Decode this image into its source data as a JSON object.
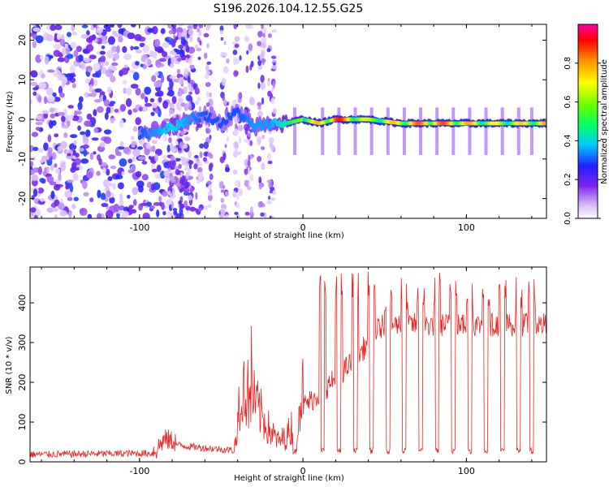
{
  "title": "S196.2026.104.12.55.G25",
  "chart_data": [
    {
      "type": "heatmap",
      "name": "spectrogram",
      "xlabel": "Height of straight line (km)",
      "ylabel": "Frequency (Hz)",
      "xlim": [
        -167,
        149
      ],
      "ylim": [
        -25,
        24
      ],
      "xticks": [
        -100,
        0,
        100
      ],
      "yticks": [
        20,
        10,
        0,
        -10,
        -20
      ],
      "colorbar": {
        "label": "Normalized spectral amplitude",
        "range": [
          0,
          1
        ],
        "ticks": [
          "0.0",
          "0.2",
          "0.4",
          "0.6",
          "0.8"
        ],
        "tick_values": [
          0.0,
          0.2,
          0.4,
          0.6,
          0.8
        ],
        "colormap": "rainbow (white-violet-blue-cyan-green-yellow-orange-red-magenta)"
      },
      "ridge": {
        "description": "signal ridge near 0 Hz",
        "x": [
          -100,
          -90,
          -80,
          -70,
          -60,
          -50,
          -40,
          -30,
          -20,
          -10,
          0,
          10,
          20,
          40,
          60,
          80,
          100,
          120,
          149
        ],
        "freq_hz": [
          -4,
          -3,
          -2,
          0,
          1,
          -1,
          2,
          -2,
          -1,
          -1,
          0,
          -1,
          0,
          0,
          -1,
          -1,
          -1,
          -1,
          -1
        ],
        "amplitude": [
          0.3,
          0.35,
          0.4,
          0.35,
          0.3,
          0.3,
          0.3,
          0.35,
          0.35,
          0.45,
          0.6,
          0.8,
          0.95,
          0.65,
          0.8,
          0.9,
          0.8,
          0.7,
          0.8
        ]
      }
    },
    {
      "type": "line",
      "name": "snr",
      "xlabel": "Height of straight line (km)",
      "ylabel": "SNR (10 * v/v)",
      "xlim": [
        -167,
        149
      ],
      "ylim": [
        0,
        490
      ],
      "xticks": [
        -100,
        0,
        100
      ],
      "yticks": [
        0,
        100,
        200,
        300,
        400
      ],
      "color": "#ee2222",
      "envelope": {
        "description": "approximate baseline of noisy SNR trace",
        "x": [
          -167,
          -90,
          -85,
          -70,
          -50,
          -42,
          -38,
          -30,
          -20,
          -15,
          -10,
          -5,
          0,
          10,
          20,
          30,
          40,
          45,
          50,
          149
        ],
        "y": [
          15,
          18,
          45,
          35,
          28,
          25,
          150,
          120,
          60,
          40,
          50,
          80,
          140,
          170,
          210,
          250,
          300,
          330,
          345,
          345
        ]
      },
      "dropouts_x": [
        -5,
        12,
        22,
        32,
        42,
        52,
        62,
        72,
        82,
        92,
        102,
        112,
        122,
        132,
        140
      ],
      "dropout_level": 20
    }
  ]
}
